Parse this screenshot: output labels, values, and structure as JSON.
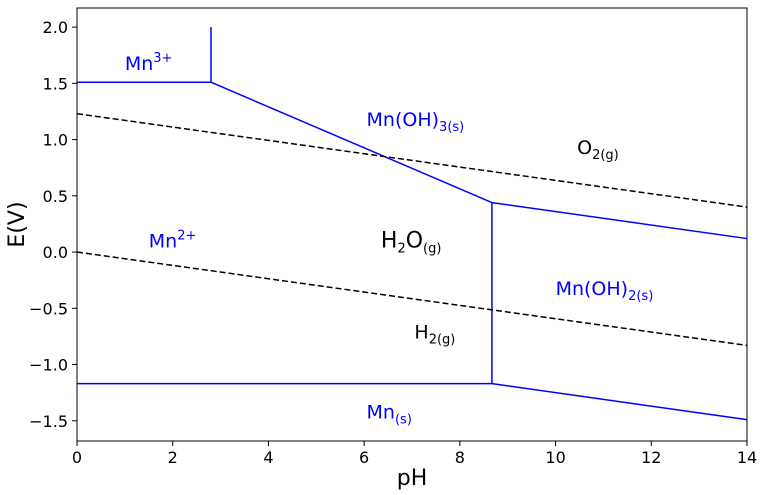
{
  "chart_data": {
    "type": "line",
    "title": "",
    "xlabel": "pH",
    "ylabel": "E(V)",
    "xlim": [
      0,
      14
    ],
    "ylim": [
      -1.68,
      2.17
    ],
    "xticks": [
      "0",
      "2",
      "4",
      "6",
      "8",
      "10",
      "12",
      "14"
    ],
    "xtick_values": [
      0,
      2,
      4,
      6,
      8,
      10,
      12,
      14
    ],
    "yticks": [
      "2.0",
      "1.5",
      "1.0",
      "0.5",
      "0.0",
      "−0.5",
      "−1.0",
      "−1.5"
    ],
    "ytick_values": [
      2.0,
      1.5,
      1.0,
      0.5,
      0.0,
      -0.5,
      -1.0,
      -1.5
    ],
    "grid": false,
    "colors": {
      "boundary": "#0000ff",
      "water": "#000000"
    },
    "series": [
      {
        "style": "solid",
        "color": "#0000ff",
        "x": [
          0,
          2.8
        ],
        "y": [
          1.51,
          1.51
        ]
      },
      {
        "style": "solid",
        "color": "#0000ff",
        "x": [
          2.8,
          2.8
        ],
        "y": [
          1.51,
          2.0
        ]
      },
      {
        "style": "solid",
        "color": "#0000ff",
        "x": [
          2.8,
          8.67
        ],
        "y": [
          1.51,
          0.44
        ]
      },
      {
        "style": "solid",
        "color": "#0000ff",
        "x": [
          8.67,
          14
        ],
        "y": [
          0.44,
          0.12
        ]
      },
      {
        "style": "solid",
        "color": "#0000ff",
        "x": [
          8.67,
          8.67
        ],
        "y": [
          0.44,
          -1.17
        ]
      },
      {
        "style": "solid",
        "color": "#0000ff",
        "x": [
          0,
          8.67
        ],
        "y": [
          -1.17,
          -1.17
        ]
      },
      {
        "style": "solid",
        "color": "#0000ff",
        "x": [
          8.67,
          14
        ],
        "y": [
          -1.17,
          -1.49
        ]
      },
      {
        "style": "dashed",
        "color": "#000000",
        "x": [
          0,
          14
        ],
        "y": [
          1.23,
          0.4
        ]
      },
      {
        "style": "dashed",
        "color": "#000000",
        "x": [
          0,
          14
        ],
        "y": [
          0.0,
          -0.83
        ]
      }
    ],
    "annotations": [
      {
        "main": "Mn",
        "sup": "3+",
        "sub": "",
        "x": 1.0,
        "y": 1.62,
        "color": "#0000ff",
        "size": "normal"
      },
      {
        "main": "Mn(OH)",
        "sup": "",
        "sub": "3(s)",
        "x": 6.05,
        "y": 1.12,
        "color": "#0000ff",
        "size": "normal"
      },
      {
        "main": "O",
        "sup": "",
        "sub": "2(g)",
        "x": 10.45,
        "y": 0.87,
        "color": "#000000",
        "size": "normal"
      },
      {
        "main": "Mn",
        "sup": "2+",
        "sub": "",
        "x": 1.5,
        "y": 0.04,
        "color": "#0000ff",
        "size": "normal"
      },
      {
        "main": "H",
        "sup": "",
        "sub": "2",
        "tail": "O",
        "sub2": "(g)",
        "x": 6.35,
        "y": 0.04,
        "color": "#000000",
        "size": "large"
      },
      {
        "main": "Mn(OH)",
        "sup": "",
        "sub": "2(s)",
        "x": 10.0,
        "y": -0.38,
        "color": "#0000ff",
        "size": "normal"
      },
      {
        "main": "H",
        "sup": "",
        "sub": "2(g)",
        "x": 7.05,
        "y": -0.77,
        "color": "#000000",
        "size": "normal"
      },
      {
        "main": "Mn",
        "sup": "",
        "sub": "(s)",
        "x": 6.05,
        "y": -1.48,
        "color": "#0000ff",
        "size": "normal"
      }
    ]
  }
}
